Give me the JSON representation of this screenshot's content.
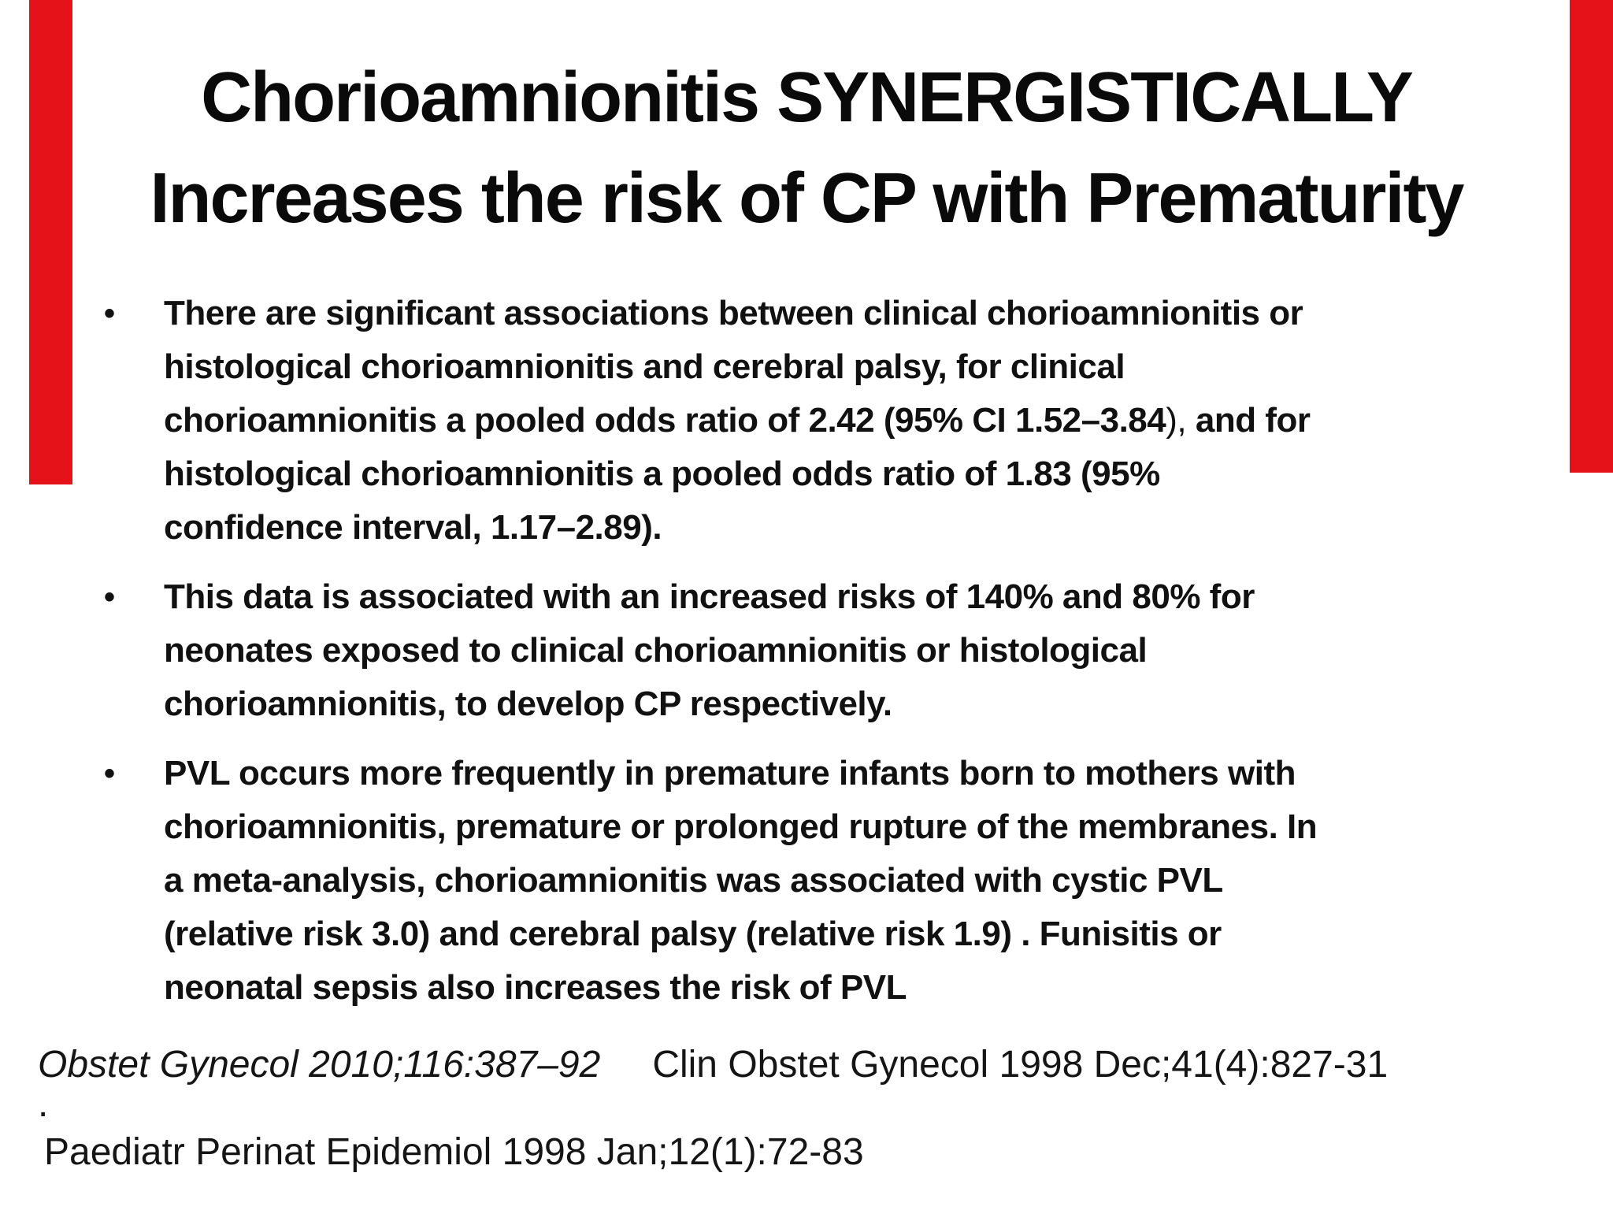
{
  "slide": {
    "title_lines": [
      "Chorioamnionitis SYNERGISTICALLY",
      "Increases the risk of CP with Prematurity"
    ],
    "bullet_glyph": "•",
    "bullets": [
      {
        "lines": [
          [
            {
              "t": "There are significant associations between clinical chorioamnionitis or",
              "b": 1
            }
          ],
          [
            {
              "t": "histological chorioamnionitis and cerebral palsy, for clinical",
              "b": 1
            }
          ],
          [
            {
              "t": "chorioamnionitis a pooled odds ratio of 2.42 (95% CI 1.52–3.84",
              "b": 1
            },
            {
              "t": "), ",
              "b": 0
            },
            {
              "t": "and for",
              "b": 1
            }
          ],
          [
            {
              "t": "histological chorioamnionitis a pooled odds ratio of 1.83 (95%",
              "b": 1
            }
          ],
          [
            {
              "t": "confidence interval, 1.17–2.89).",
              "b": 1
            }
          ]
        ]
      },
      {
        "lines": [
          [
            {
              "t": "This data is associated with an increased risks of 140% and 80% for",
              "b": 1
            }
          ],
          [
            {
              "t": "neonates exposed to clinical chorioamnionitis or histological",
              "b": 1
            }
          ],
          [
            {
              "t": "chorioamnionitis, to develop CP respectively.",
              "b": 1
            }
          ]
        ]
      },
      {
        "lines": [
          [
            {
              "t": "PVL occurs more frequently in premature infants born to mothers with",
              "b": 1
            }
          ],
          [
            {
              "t": "chorioamnionitis, premature or prolonged rupture of the membranes. In",
              "b": 1
            }
          ],
          [
            {
              "t": "a meta-analysis, chorioamnionitis was associated with cystic PVL",
              "b": 1
            }
          ],
          [
            {
              "t": "(relative risk 3.0) and cerebral palsy (relative risk 1.9) . Funisitis or",
              "b": 1
            }
          ],
          [
            {
              "t": "neonatal sepsis also increases the risk of PVL",
              "b": 1
            }
          ]
        ]
      }
    ],
    "citations": {
      "row1": [
        {
          "text": "Obstet Gynecol 2010;116:387–92",
          "italic": true
        },
        {
          "text": "Clin Obstet Gynecol 1998 Dec;41(4):827-31",
          "italic": false
        }
      ],
      "period": ".",
      "row2": "Paediatr Perinat Epidemiol 1998 Jan;12(1):72-83"
    },
    "decor": {
      "bar_color": "#e51219"
    }
  }
}
